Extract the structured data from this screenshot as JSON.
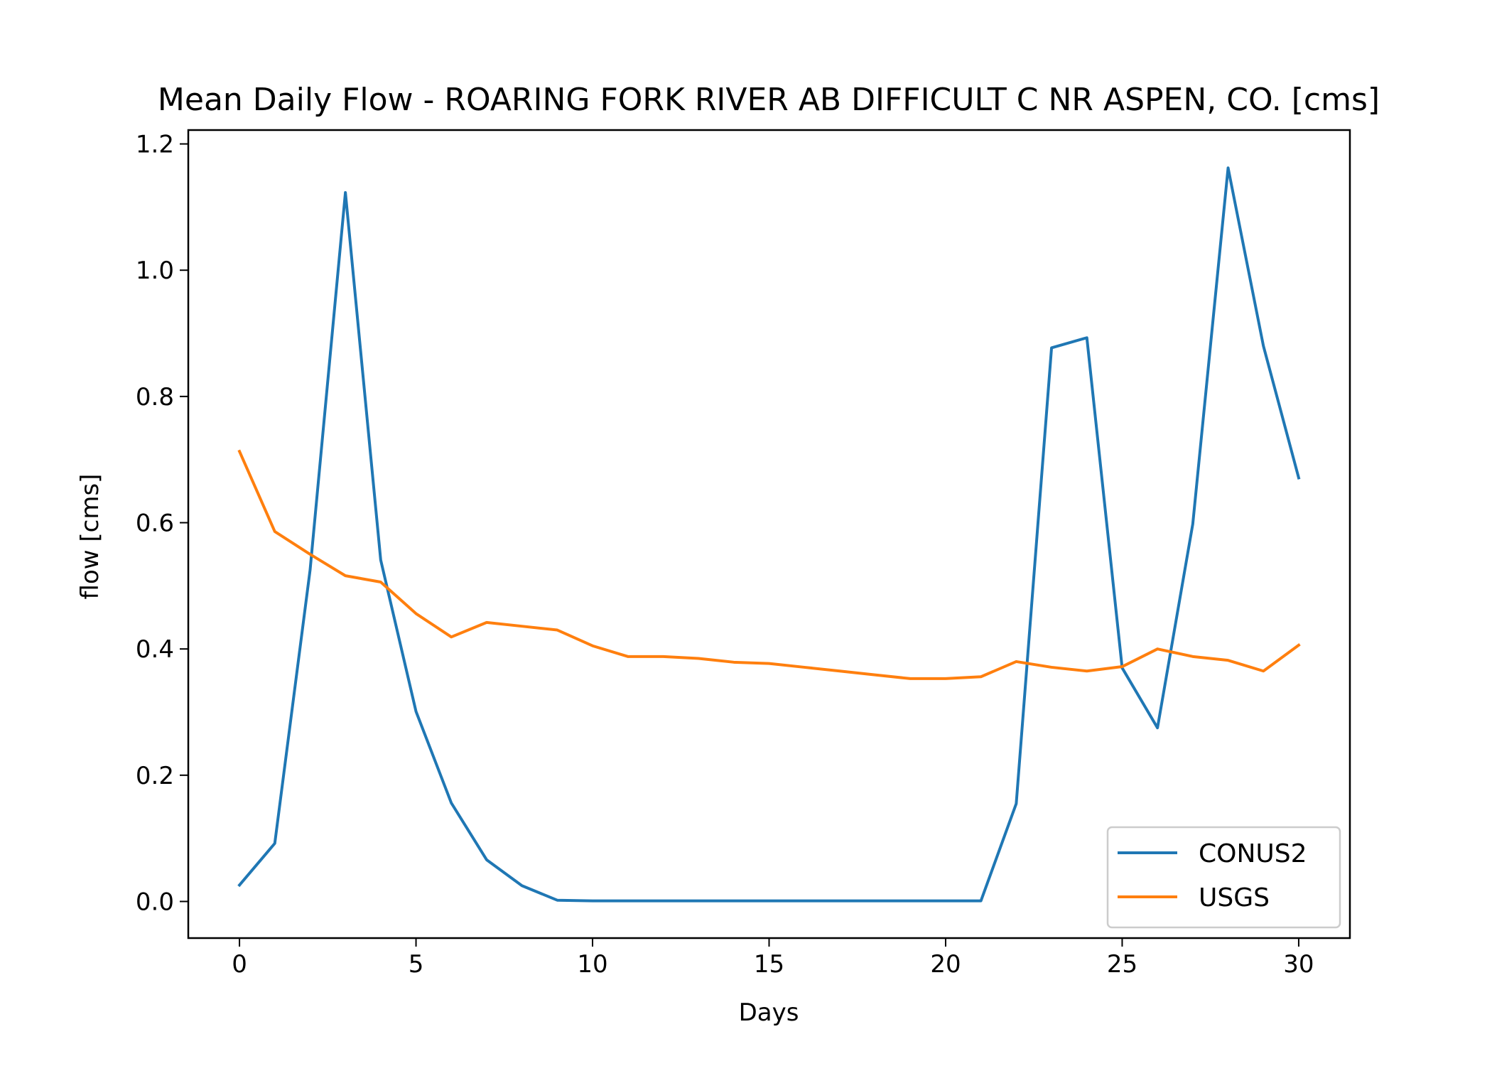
{
  "chart_data": {
    "type": "line",
    "title": "Mean Daily Flow - ROARING FORK RIVER AB DIFFICULT C NR ASPEN, CO. [cms]",
    "xlabel": "Days",
    "ylabel": "flow [cms]",
    "xlim": [
      -1.45,
      31.45
    ],
    "ylim": [
      -0.058,
      1.222
    ],
    "xticks": [
      0,
      5,
      10,
      15,
      20,
      25,
      30
    ],
    "yticks": [
      0.0,
      0.2,
      0.4,
      0.6,
      0.8,
      1.0,
      1.2
    ],
    "ytick_labels": [
      "0.0",
      "0.2",
      "0.4",
      "0.6",
      "0.8",
      "1.0",
      "1.2"
    ],
    "grid": false,
    "legend_position": "lower-right",
    "x": [
      0,
      1,
      2,
      3,
      4,
      5,
      6,
      7,
      8,
      9,
      10,
      11,
      12,
      13,
      14,
      15,
      16,
      17,
      18,
      19,
      20,
      21,
      22,
      23,
      24,
      25,
      26,
      27,
      28,
      29,
      30
    ],
    "series": [
      {
        "name": "CONUS2",
        "color": "#1f77b4",
        "values": [
          0.026,
          0.092,
          0.525,
          1.123,
          0.541,
          0.301,
          0.156,
          0.066,
          0.025,
          0.002,
          0.001,
          0.001,
          0.001,
          0.001,
          0.001,
          0.001,
          0.001,
          0.001,
          0.001,
          0.001,
          0.001,
          0.001,
          0.155,
          0.877,
          0.893,
          0.37,
          0.275,
          0.598,
          1.162,
          0.88,
          0.671
        ]
      },
      {
        "name": "USGS",
        "color": "#ff7f0e",
        "values": [
          0.713,
          0.586,
          0.55,
          0.516,
          0.506,
          0.456,
          0.419,
          0.442,
          0.436,
          0.43,
          0.405,
          0.388,
          0.388,
          0.385,
          0.379,
          0.377,
          0.371,
          0.365,
          0.359,
          0.353,
          0.353,
          0.356,
          0.38,
          0.371,
          0.365,
          0.372,
          0.4,
          0.388,
          0.382,
          0.365,
          0.406
        ]
      }
    ]
  }
}
